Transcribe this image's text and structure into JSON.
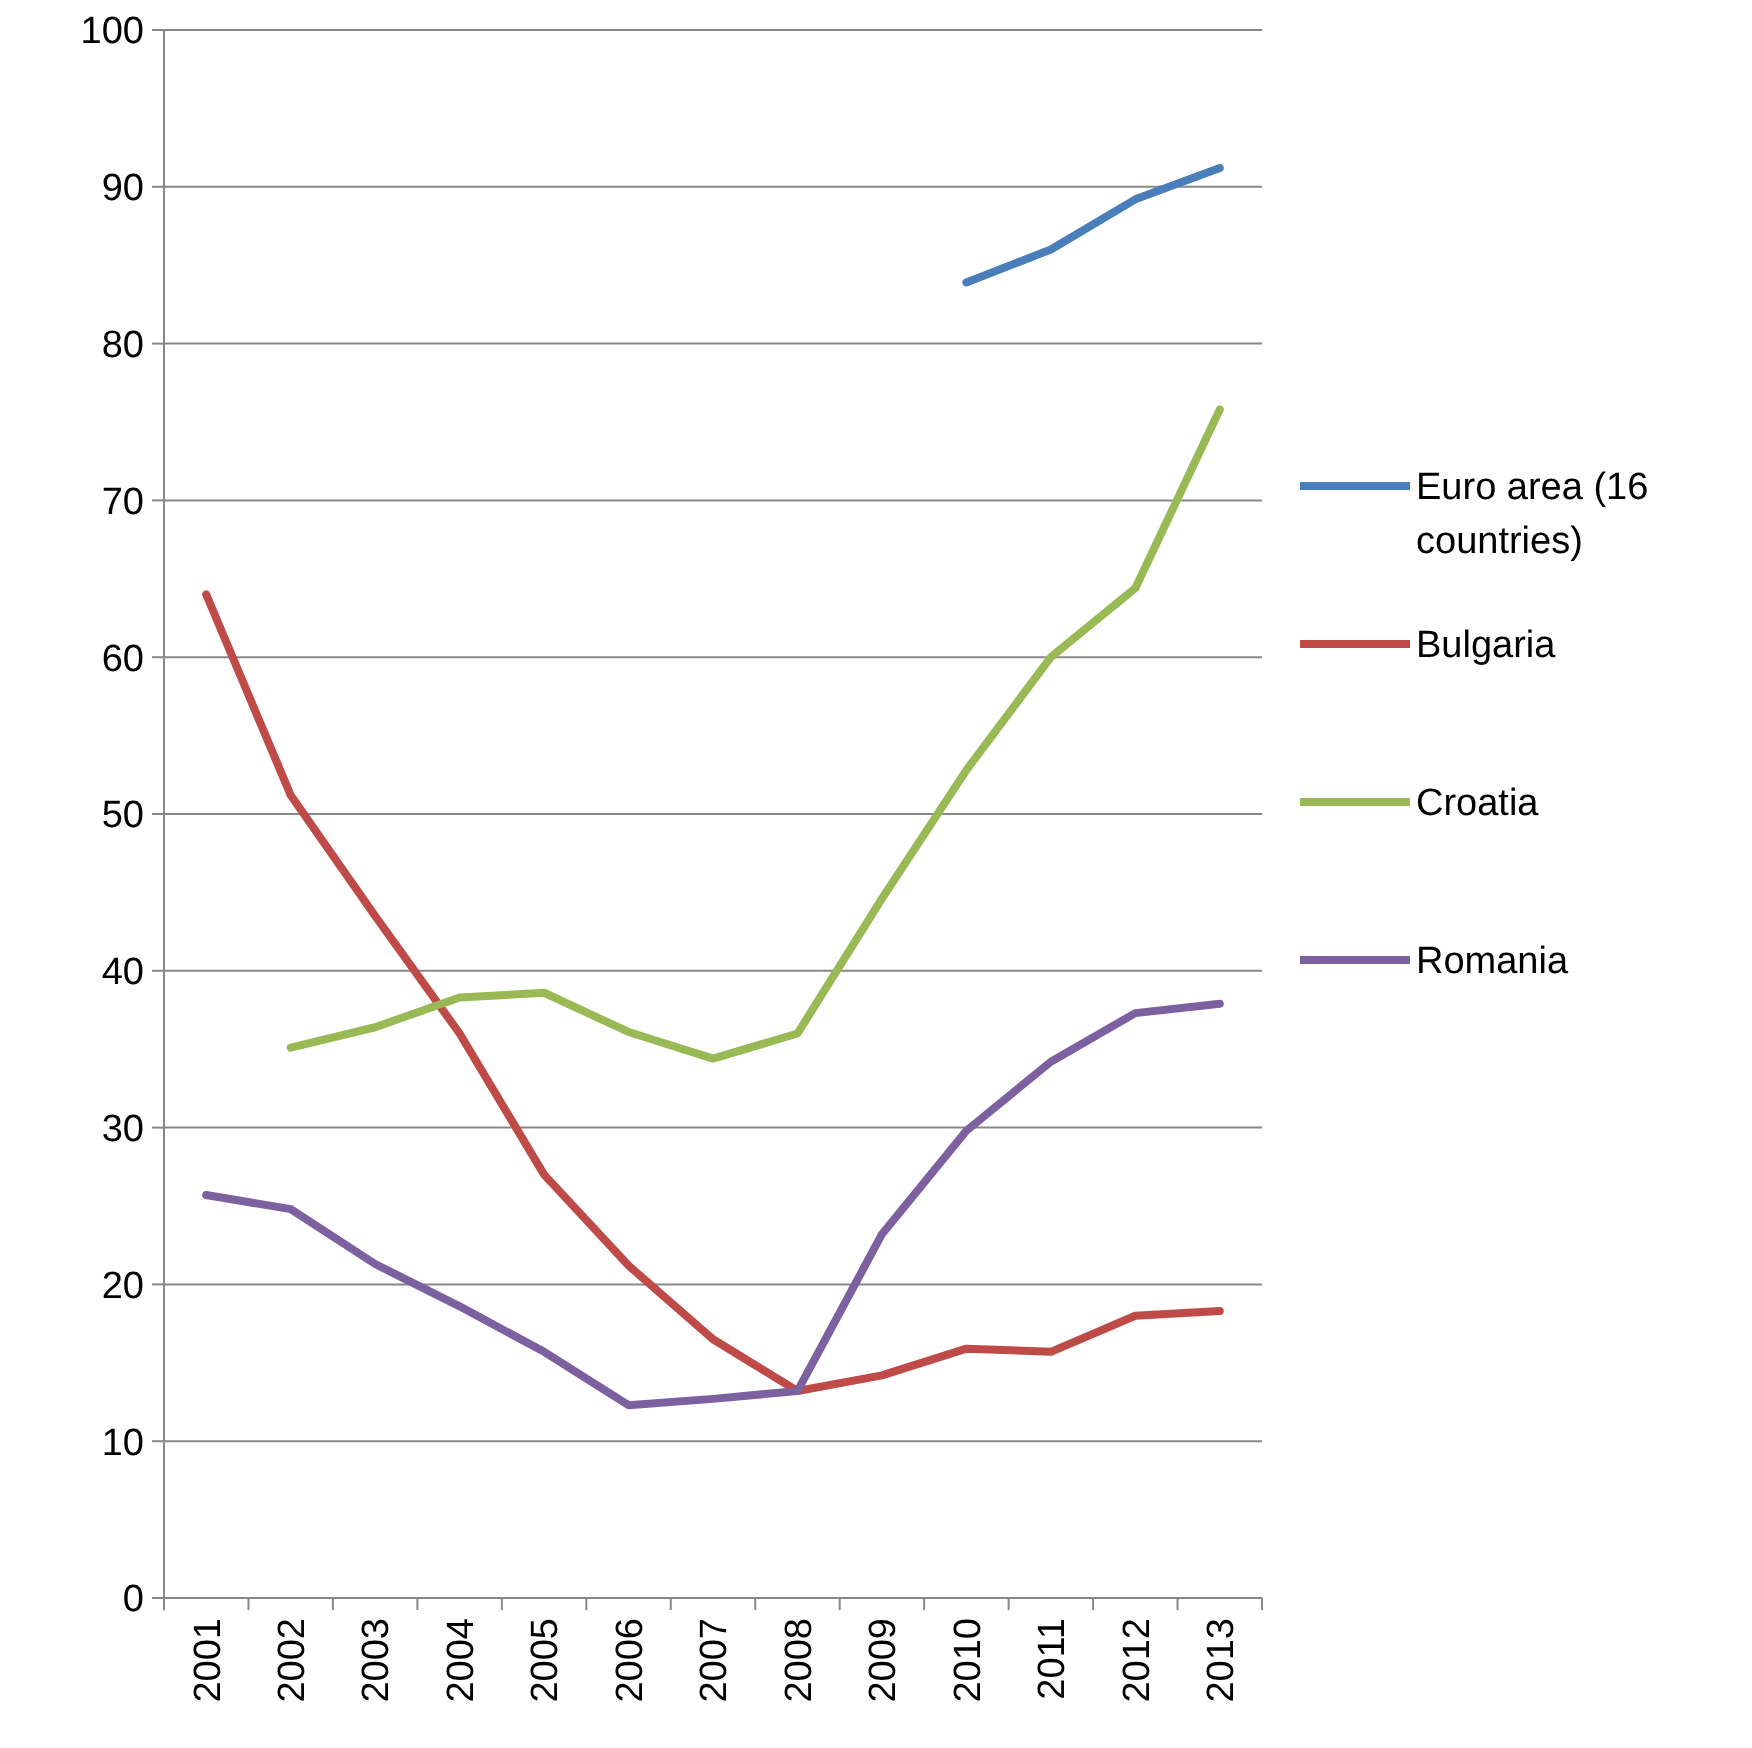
{
  "chart_data": {
    "type": "line",
    "categories": [
      "2001",
      "2002",
      "2003",
      "2004",
      "2005",
      "2006",
      "2007",
      "2008",
      "2009",
      "2010",
      "2011",
      "2012",
      "2013"
    ],
    "series": [
      {
        "name": "Euro area (16 countries)",
        "color": "#4a7ebb",
        "values": [
          null,
          null,
          null,
          null,
          null,
          null,
          null,
          null,
          null,
          83.9,
          86.0,
          89.2,
          91.2
        ]
      },
      {
        "name": "Bulgaria",
        "color": "#be4b48",
        "values": [
          64.0,
          51.2,
          43.5,
          36.0,
          27.0,
          21.2,
          16.5,
          13.2,
          14.2,
          15.9,
          15.7,
          18.0,
          18.3
        ]
      },
      {
        "name": "Croatia",
        "color": "#98b954",
        "values": [
          null,
          35.1,
          36.4,
          38.3,
          38.6,
          36.1,
          34.4,
          36.0,
          44.6,
          52.8,
          60.0,
          64.4,
          75.8
        ]
      },
      {
        "name": "Romania",
        "color": "#7d60a0",
        "values": [
          25.7,
          24.8,
          21.3,
          18.6,
          15.7,
          12.3,
          12.7,
          13.2,
          23.2,
          29.8,
          34.2,
          37.3,
          37.9
        ]
      }
    ],
    "ylim": [
      0,
      100
    ],
    "yticks": [
      0,
      10,
      20,
      30,
      40,
      50,
      60,
      70,
      80,
      90,
      100
    ],
    "grid": "y",
    "legend": "right",
    "marker": "none",
    "line_style": "solid"
  }
}
